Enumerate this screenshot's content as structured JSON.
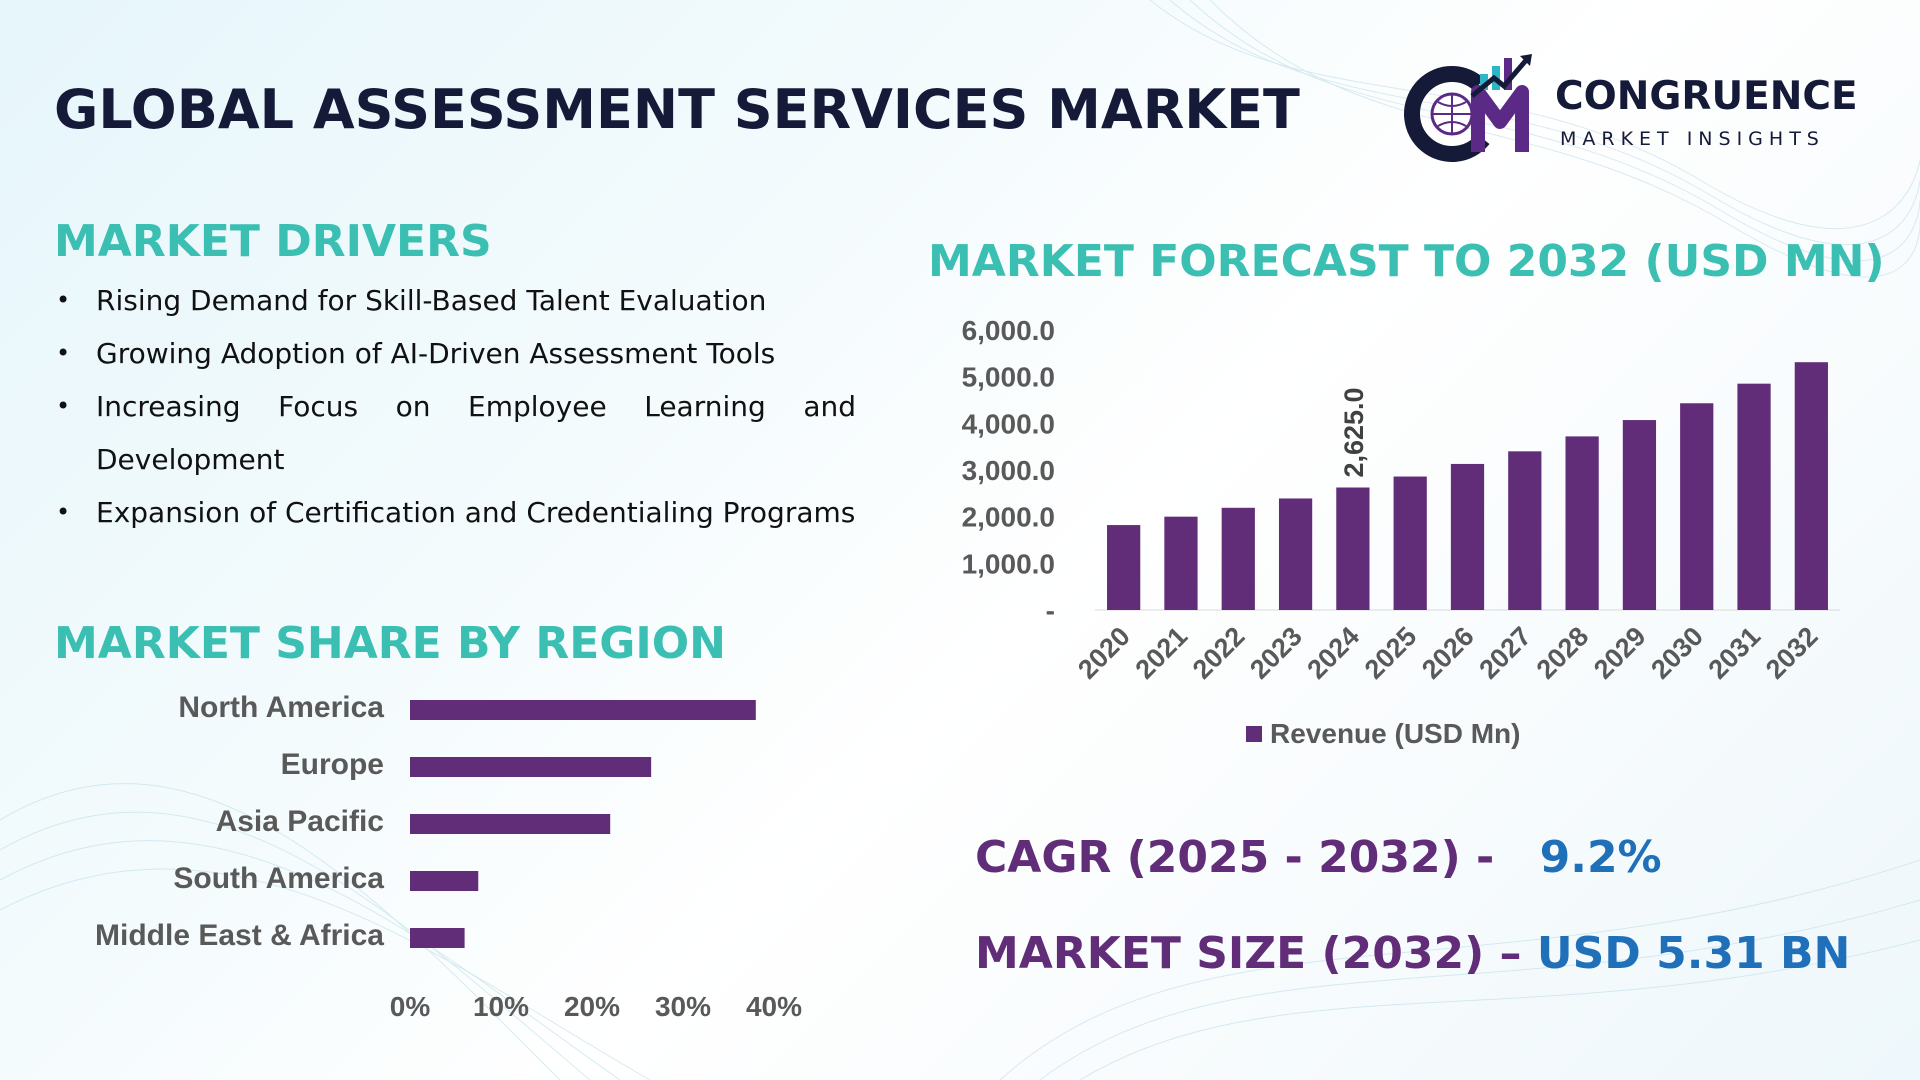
{
  "title": "GLOBAL ASSESSMENT SERVICES MARKET",
  "logo": {
    "name": "CONGRUENCE",
    "tagline": "MARKET INSIGHTS",
    "colors": {
      "navy": "#141a38",
      "purple": "#5b2a86",
      "teal": "#2fb5c8"
    }
  },
  "drivers": {
    "heading": "MARKET DRIVERS",
    "items": [
      "Rising Demand for Skill-Based Talent Evaluation",
      "Growing Adoption of AI-Driven Assessment Tools",
      "Increasing Focus on Employee Learning and Development",
      "Expansion of Certification and Credentialing Programs"
    ]
  },
  "region": {
    "heading": "MARKET SHARE BY REGION"
  },
  "forecast": {
    "heading": "MARKET FORECAST TO 2032 (USD MN)"
  },
  "stats": {
    "cagr_label": "CAGR (2025 - 2032) -",
    "cagr_value": "9.2%",
    "size_label": "MARKET SIZE (2032) –",
    "size_value": "USD 5.31 BN"
  },
  "colors": {
    "bar": "#612d78",
    "heading": "#3bbfb2",
    "title": "#141a38",
    "stat_label": "#612d78",
    "stat_value": "#1f70b8"
  },
  "chart_data": [
    {
      "type": "bar",
      "orientation": "vertical",
      "categories": [
        "2020",
        "2021",
        "2022",
        "2023",
        "2024",
        "2025",
        "2026",
        "2027",
        "2028",
        "2029",
        "2030",
        "2031",
        "2032"
      ],
      "series": [
        {
          "name": "Revenue (USD Mn)",
          "values": [
            1820,
            2000,
            2190,
            2390,
            2625,
            2860,
            3130,
            3400,
            3720,
            4070,
            4430,
            4850,
            5310
          ]
        }
      ],
      "data_labels": [
        {
          "category": "2024",
          "text": "2,625.0"
        }
      ],
      "yticks": [
        "-",
        "1,000.0",
        "2,000.0",
        "3,000.0",
        "4,000.0",
        "5,000.0",
        "6,000.0"
      ],
      "ylim": [
        0,
        6000
      ],
      "legend": "bottom",
      "grid": false
    },
    {
      "type": "bar",
      "orientation": "horizontal",
      "categories": [
        "North America",
        "Europe",
        "Asia Pacific",
        "South America",
        "Middle East & Africa"
      ],
      "values": [
        38,
        26.5,
        22,
        7.5,
        6
      ],
      "unit": "%",
      "xticks": [
        "0%",
        "10%",
        "20%",
        "30%",
        "40%"
      ],
      "xlim": [
        0,
        40
      ],
      "grid": false
    }
  ]
}
